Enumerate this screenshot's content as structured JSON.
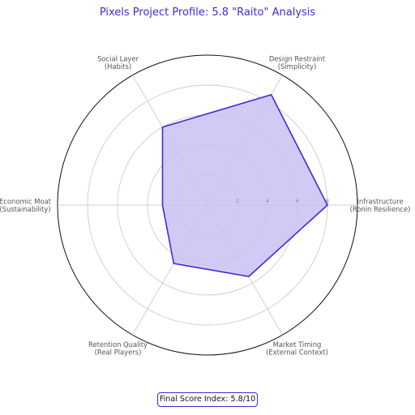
{
  "chart_data": {
    "type": "radar",
    "title": "Pixels Project Profile: 5.8 \"Raito\" Analysis",
    "axes": [
      "Infrastructure\n(Ronin Resilience)",
      "Design Restraint\n(Simplicity)",
      "Social Layer\n(Habits)",
      "Economic Moat\n(Sustainability)",
      "Retention Quality\n(Real Players)",
      "Market Timing\n(External Context)"
    ],
    "series": [
      {
        "values": [
          8,
          8.5,
          6,
          3,
          4.5,
          5.5
        ]
      }
    ],
    "rlim": [
      0,
      10
    ],
    "rticks": [
      2,
      4,
      6,
      8
    ],
    "grid": true,
    "colors": {
      "line": "#3b2fd6",
      "fill": "#c9c1f3",
      "title": "#3b2fd6"
    },
    "footer": "Final Score Index: 5.8/10"
  }
}
